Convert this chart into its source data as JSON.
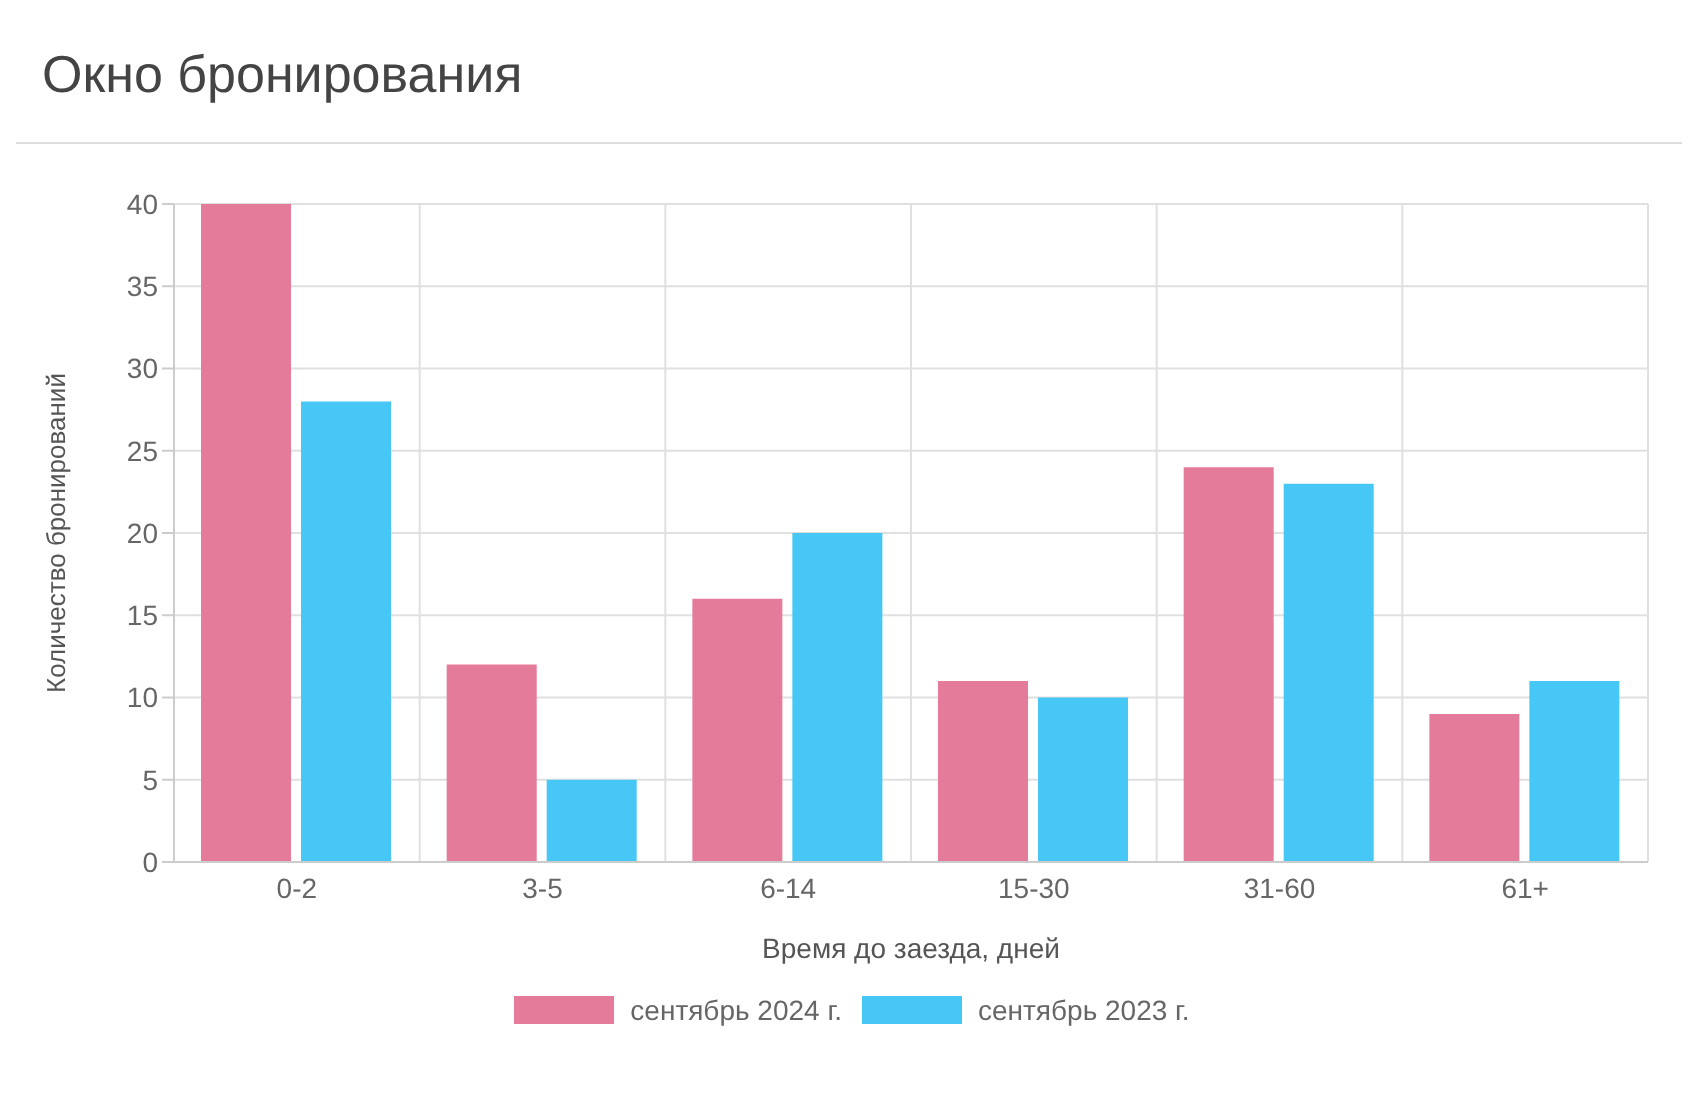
{
  "chart_data": {
    "type": "bar",
    "title": "Окно бронирования",
    "xlabel": "Время до заезда, дней",
    "ylabel": "Количество бронирований",
    "categories": [
      "0-2",
      "3-5",
      "6-14",
      "15-30",
      "31-60",
      "61+"
    ],
    "series": [
      {
        "name": "сентябрь 2024 г.",
        "color": "#e57b9a",
        "values": [
          40,
          12,
          16,
          11,
          24,
          9
        ]
      },
      {
        "name": "сентябрь 2023 г.",
        "color": "#47c7f5",
        "values": [
          28,
          5,
          20,
          10,
          23,
          11
        ]
      }
    ],
    "ylim": [
      0,
      40
    ],
    "yticks": [
      0,
      5,
      10,
      15,
      20,
      25,
      30,
      35,
      40
    ],
    "grid": true,
    "legend": "bottom"
  }
}
